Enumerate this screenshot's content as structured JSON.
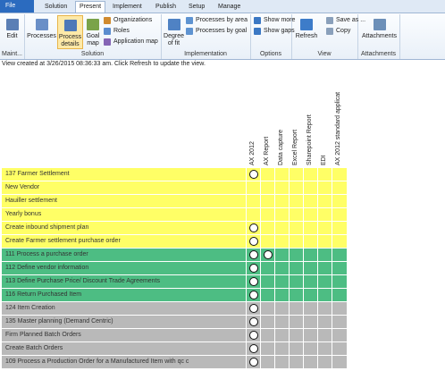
{
  "ribbon": {
    "tabs": [
      "File",
      "Solution",
      "Present",
      "Implement",
      "Publish",
      "Setup",
      "Manage"
    ],
    "groups": [
      {
        "label": "Maint...",
        "buttons": [
          "Edit"
        ]
      },
      {
        "label": "Solution",
        "buttons": [
          "Processes",
          "Process details",
          "Goal map",
          "Organizations",
          "Roles",
          "Application map"
        ]
      },
      {
        "label": "Implementation",
        "buttons": [
          "Degree of fit",
          "Processes by area",
          "Processes by goal"
        ]
      },
      {
        "label": "Options",
        "buttons": [
          "Show more",
          "Show gaps"
        ]
      },
      {
        "label": "View",
        "buttons": [
          "Refresh",
          "Save as ...",
          "Copy"
        ]
      },
      {
        "label": "Attachments",
        "buttons": [
          "Attachments"
        ]
      }
    ]
  },
  "status": "View created at 3/26/2015 08:36:33 am. Click Refresh to update the view.",
  "table": {
    "columns": [
      "AX 2012",
      "AX Report",
      "Data capture",
      "Excel Report",
      "Sharepoint Report",
      "EDI",
      "AX 2012 standard applicat"
    ],
    "rows": [
      {
        "label": "137 Farmer Settlement",
        "color": "#ffff66",
        "cells": [
          true,
          false,
          false,
          false,
          false,
          false,
          false
        ]
      },
      {
        "label": "New Vendor",
        "color": "#ffff66",
        "cells": [
          false,
          false,
          false,
          false,
          false,
          false,
          false
        ]
      },
      {
        "label": "Hauiller settlement",
        "color": "#ffff66",
        "cells": [
          false,
          false,
          false,
          false,
          false,
          false,
          false
        ]
      },
      {
        "label": "Yearly bonus",
        "color": "#ffff66",
        "cells": [
          false,
          false,
          false,
          false,
          false,
          false,
          false
        ]
      },
      {
        "label": "Create inbound shipment plan",
        "color": "#ffff66",
        "cells": [
          true,
          false,
          false,
          false,
          false,
          false,
          false
        ]
      },
      {
        "label": "Create Farmer settlement purchase order",
        "color": "#ffff66",
        "cells": [
          true,
          false,
          false,
          false,
          false,
          false,
          false
        ]
      },
      {
        "label": "111 Process a purchase order",
        "color": "#4dbd83",
        "cells": [
          true,
          true,
          false,
          false,
          false,
          false,
          false
        ]
      },
      {
        "label": "112 Define vendor information",
        "color": "#4dbd83",
        "cells": [
          true,
          false,
          false,
          false,
          false,
          false,
          false
        ]
      },
      {
        "label": "113 Define Purchase Price/ Discount Trade Agreements",
        "color": "#4dbd83",
        "cells": [
          true,
          false,
          false,
          false,
          false,
          false,
          false
        ]
      },
      {
        "label": "116 Return Purchased Item",
        "color": "#4dbd83",
        "cells": [
          true,
          false,
          false,
          false,
          false,
          false,
          false
        ]
      },
      {
        "label": "124 Item Creation",
        "color": "#b9b9b9",
        "cells": [
          true,
          false,
          false,
          false,
          false,
          false,
          false
        ]
      },
      {
        "label": "135 Master planning (Demand Centric)",
        "color": "#b9b9b9",
        "cells": [
          true,
          false,
          false,
          false,
          false,
          false,
          false
        ]
      },
      {
        "label": "Firm Planned Batch Orders",
        "color": "#b9b9b9",
        "cells": [
          true,
          false,
          false,
          false,
          false,
          false,
          false
        ]
      },
      {
        "label": "Create Batch Orders",
        "color": "#b9b9b9",
        "cells": [
          true,
          false,
          false,
          false,
          false,
          false,
          false
        ]
      },
      {
        "label": "109 Process a Production Order for a Manufactured Item with qc c",
        "color": "#b9b9b9",
        "cells": [
          true,
          false,
          false,
          false,
          false,
          false,
          false
        ]
      }
    ]
  }
}
